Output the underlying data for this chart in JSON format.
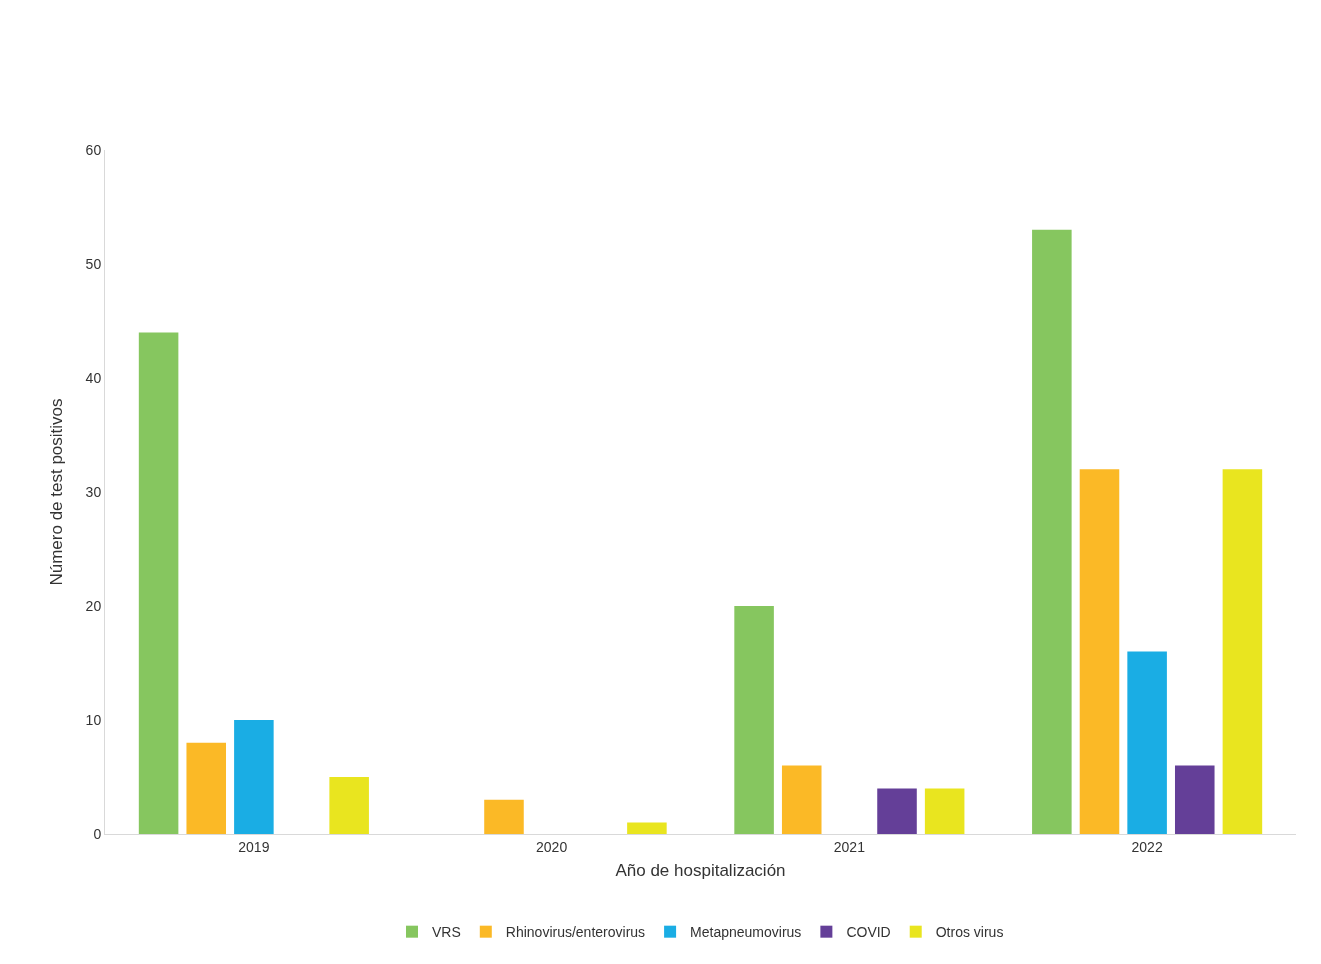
{
  "chart_data": {
    "type": "bar",
    "xlabel": "Año de hospitalización",
    "ylabel": "Número de test positivos",
    "categories": [
      "2019",
      "2020",
      "2021",
      "2022"
    ],
    "series": [
      {
        "name": "VRS",
        "color": "#86c65f",
        "values": [
          44,
          0,
          20,
          53
        ]
      },
      {
        "name": "Rhinovirus/enterovirus",
        "color": "#fbb926",
        "values": [
          8,
          3,
          6,
          32
        ]
      },
      {
        "name": "Metapneumovirus",
        "color": "#1aade4",
        "values": [
          10,
          0,
          0,
          16
        ]
      },
      {
        "name": "COVID",
        "color": "#643f98",
        "values": [
          0,
          0,
          4,
          6
        ]
      },
      {
        "name": "Otros virus",
        "color": "#e9e51f",
        "values": [
          5,
          1,
          4,
          32
        ]
      }
    ],
    "ylim": [
      0,
      60
    ],
    "yticks": [
      0,
      10,
      20,
      30,
      40,
      50,
      60
    ],
    "grid": false,
    "legend": "bottom"
  }
}
